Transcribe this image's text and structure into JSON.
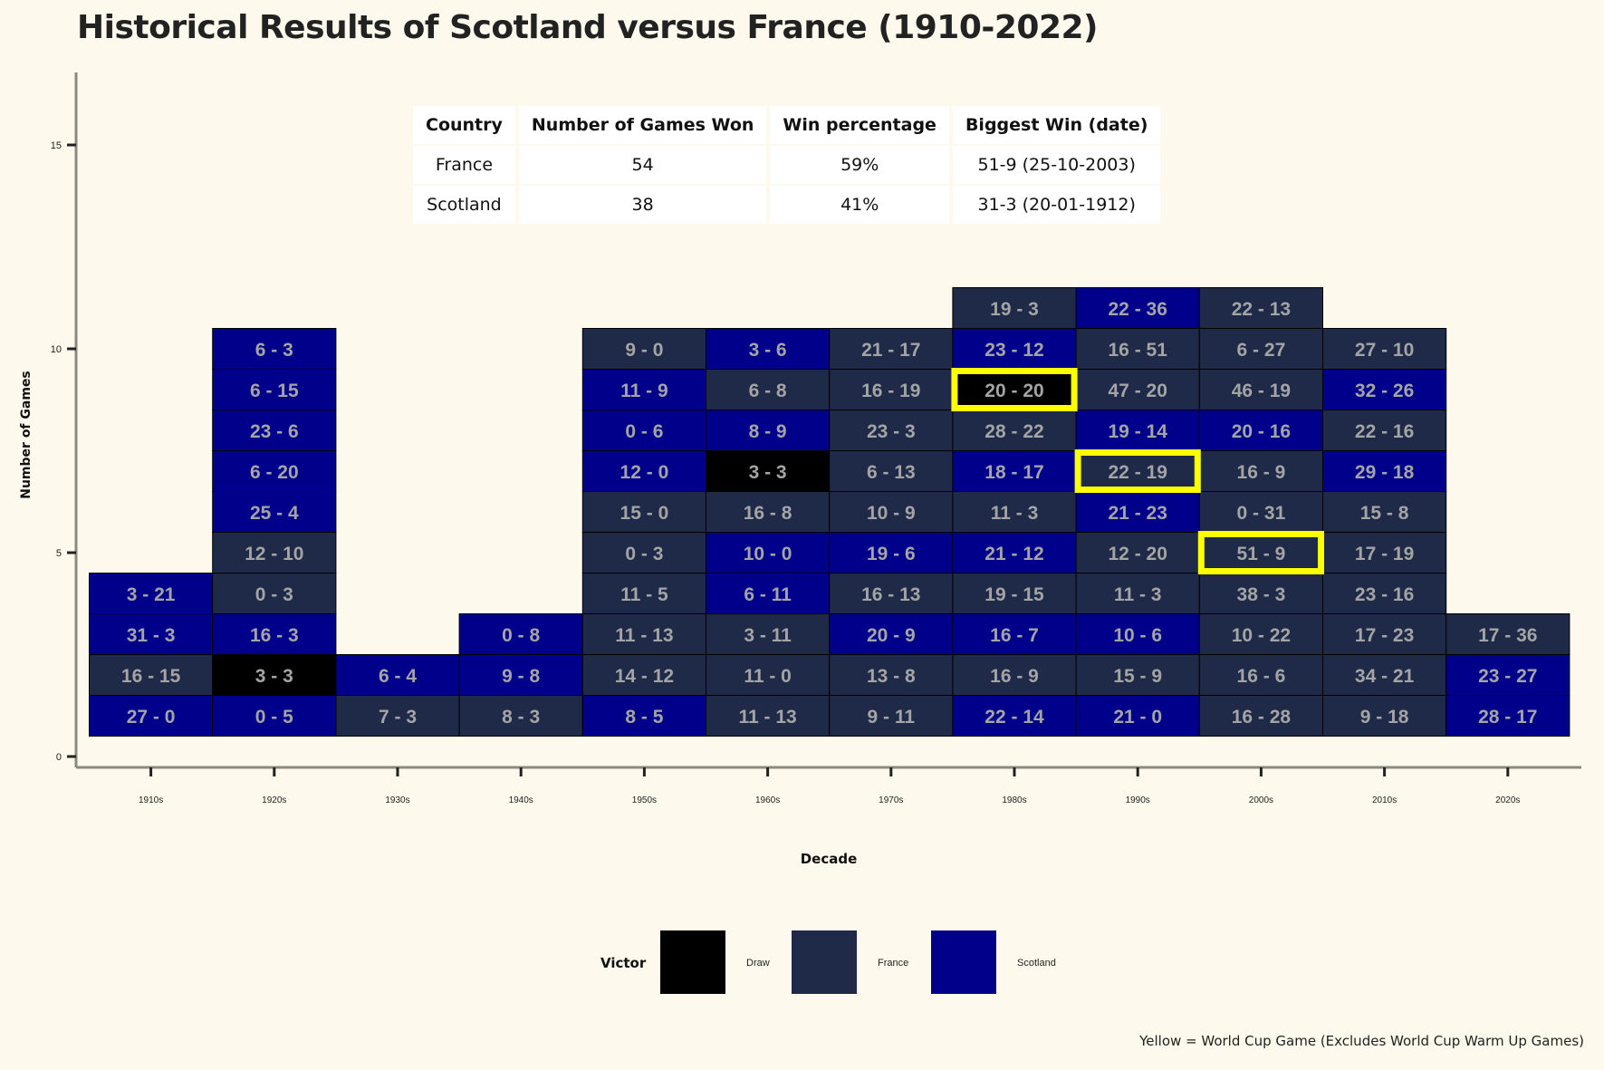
{
  "chart_data": {
    "type": "heatmap",
    "title": "Historical Results of Scotland versus France (1910-2022)",
    "xlabel": "Decade",
    "ylabel": "Number of Games",
    "ylim": [
      0,
      16
    ],
    "yticks": [
      0,
      5,
      10,
      15
    ],
    "categories": [
      "1910s",
      "1920s",
      "1930s",
      "1940s",
      "1950s",
      "1960s",
      "1970s",
      "1980s",
      "1990s",
      "2000s",
      "2010s",
      "2020s"
    ],
    "legend": {
      "title": "Victor",
      "entries": [
        "Draw",
        "France",
        "Scotland"
      ],
      "placement": "bottom"
    },
    "colors": {
      "Draw": "#000000",
      "France": "#1e2a47",
      "Scotland": "#00008b",
      "world_cup_outline": "#ffff00",
      "cell_text": "#a4a4a4"
    },
    "columns": [
      {
        "decade": "1910s",
        "games": [
          {
            "score": "27 - 0",
            "victor": "Scotland"
          },
          {
            "score": "16 - 15",
            "victor": "France"
          },
          {
            "score": "31 - 3",
            "victor": "Scotland"
          },
          {
            "score": "3 - 21",
            "victor": "Scotland"
          }
        ]
      },
      {
        "decade": "1920s",
        "games": [
          {
            "score": "0 - 5",
            "victor": "Scotland"
          },
          {
            "score": "3 - 3",
            "victor": "Draw"
          },
          {
            "score": "16 - 3",
            "victor": "Scotland"
          },
          {
            "score": "0 - 3",
            "victor": "France"
          },
          {
            "score": "12 - 10",
            "victor": "France"
          },
          {
            "score": "25 - 4",
            "victor": "Scotland"
          },
          {
            "score": "6 - 20",
            "victor": "Scotland"
          },
          {
            "score": "23 - 6",
            "victor": "Scotland"
          },
          {
            "score": "6 - 15",
            "victor": "Scotland"
          },
          {
            "score": "6 - 3",
            "victor": "Scotland"
          }
        ]
      },
      {
        "decade": "1930s",
        "games": [
          {
            "score": "7 - 3",
            "victor": "France"
          },
          {
            "score": "6 - 4",
            "victor": "Scotland"
          }
        ]
      },
      {
        "decade": "1940s",
        "games": [
          {
            "score": "8 - 3",
            "victor": "France"
          },
          {
            "score": "9 - 8",
            "victor": "Scotland"
          },
          {
            "score": "0 - 8",
            "victor": "Scotland"
          }
        ]
      },
      {
        "decade": "1950s",
        "games": [
          {
            "score": "8 - 5",
            "victor": "Scotland"
          },
          {
            "score": "14 - 12",
            "victor": "France"
          },
          {
            "score": "11 - 13",
            "victor": "France"
          },
          {
            "score": "11 - 5",
            "victor": "France"
          },
          {
            "score": "0 - 3",
            "victor": "France"
          },
          {
            "score": "15 - 0",
            "victor": "France"
          },
          {
            "score": "12 - 0",
            "victor": "Scotland"
          },
          {
            "score": "0 - 6",
            "victor": "Scotland"
          },
          {
            "score": "11 - 9",
            "victor": "Scotland"
          },
          {
            "score": "9 - 0",
            "victor": "France"
          }
        ]
      },
      {
        "decade": "1960s",
        "games": [
          {
            "score": "11 - 13",
            "victor": "France"
          },
          {
            "score": "11 - 0",
            "victor": "France"
          },
          {
            "score": "3 - 11",
            "victor": "France"
          },
          {
            "score": "6 - 11",
            "victor": "Scotland"
          },
          {
            "score": "10 - 0",
            "victor": "Scotland"
          },
          {
            "score": "16 - 8",
            "victor": "France"
          },
          {
            "score": "3 - 3",
            "victor": "Draw"
          },
          {
            "score": "8 - 9",
            "victor": "Scotland"
          },
          {
            "score": "6 - 8",
            "victor": "France"
          },
          {
            "score": "3 - 6",
            "victor": "Scotland"
          }
        ]
      },
      {
        "decade": "1970s",
        "games": [
          {
            "score": "9 - 11",
            "victor": "France"
          },
          {
            "score": "13 - 8",
            "victor": "France"
          },
          {
            "score": "20 - 9",
            "victor": "Scotland"
          },
          {
            "score": "16 - 13",
            "victor": "France"
          },
          {
            "score": "19 - 6",
            "victor": "Scotland"
          },
          {
            "score": "10 - 9",
            "victor": "France"
          },
          {
            "score": "6 - 13",
            "victor": "France"
          },
          {
            "score": "23 - 3",
            "victor": "France"
          },
          {
            "score": "16 - 19",
            "victor": "France"
          },
          {
            "score": "21 - 17",
            "victor": "France"
          }
        ]
      },
      {
        "decade": "1980s",
        "games": [
          {
            "score": "22 - 14",
            "victor": "Scotland"
          },
          {
            "score": "16 - 9",
            "victor": "France"
          },
          {
            "score": "16 - 7",
            "victor": "Scotland"
          },
          {
            "score": "19 - 15",
            "victor": "France"
          },
          {
            "score": "21 - 12",
            "victor": "Scotland"
          },
          {
            "score": "11 - 3",
            "victor": "France"
          },
          {
            "score": "18 - 17",
            "victor": "Scotland"
          },
          {
            "score": "28 - 22",
            "victor": "France"
          },
          {
            "score": "20 - 20",
            "victor": "Draw",
            "world_cup": true
          },
          {
            "score": "23 - 12",
            "victor": "Scotland"
          },
          {
            "score": "19 - 3",
            "victor": "France"
          }
        ]
      },
      {
        "decade": "1990s",
        "games": [
          {
            "score": "21 - 0",
            "victor": "Scotland"
          },
          {
            "score": "15 - 9",
            "victor": "France"
          },
          {
            "score": "10 - 6",
            "victor": "Scotland"
          },
          {
            "score": "11 - 3",
            "victor": "France"
          },
          {
            "score": "12 - 20",
            "victor": "France"
          },
          {
            "score": "21 - 23",
            "victor": "Scotland"
          },
          {
            "score": "22 - 19",
            "victor": "France",
            "world_cup": true
          },
          {
            "score": "19 - 14",
            "victor": "Scotland"
          },
          {
            "score": "47 - 20",
            "victor": "France"
          },
          {
            "score": "16 - 51",
            "victor": "France"
          },
          {
            "score": "22 - 36",
            "victor": "Scotland"
          }
        ]
      },
      {
        "decade": "2000s",
        "games": [
          {
            "score": "16 - 28",
            "victor": "France"
          },
          {
            "score": "16 - 6",
            "victor": "France"
          },
          {
            "score": "10 - 22",
            "victor": "France"
          },
          {
            "score": "38 - 3",
            "victor": "France"
          },
          {
            "score": "51 - 9",
            "victor": "France",
            "world_cup": true
          },
          {
            "score": "0 - 31",
            "victor": "France"
          },
          {
            "score": "16 - 9",
            "victor": "France"
          },
          {
            "score": "20 - 16",
            "victor": "Scotland"
          },
          {
            "score": "46 - 19",
            "victor": "France"
          },
          {
            "score": "6 - 27",
            "victor": "France"
          },
          {
            "score": "22 - 13",
            "victor": "France"
          }
        ]
      },
      {
        "decade": "2010s",
        "games": [
          {
            "score": "9 - 18",
            "victor": "France"
          },
          {
            "score": "34 - 21",
            "victor": "France"
          },
          {
            "score": "17 - 23",
            "victor": "France"
          },
          {
            "score": "23 - 16",
            "victor": "France"
          },
          {
            "score": "17 - 19",
            "victor": "France"
          },
          {
            "score": "15 - 8",
            "victor": "France"
          },
          {
            "score": "29 - 18",
            "victor": "Scotland"
          },
          {
            "score": "22 - 16",
            "victor": "France"
          },
          {
            "score": "32 - 26",
            "victor": "Scotland"
          },
          {
            "score": "27 - 10",
            "victor": "France"
          }
        ]
      },
      {
        "decade": "2020s",
        "games": [
          {
            "score": "28 - 17",
            "victor": "Scotland"
          },
          {
            "score": "23 - 27",
            "victor": "Scotland"
          },
          {
            "score": "17 - 36",
            "victor": "France"
          }
        ]
      }
    ]
  },
  "summary_table": {
    "headers": [
      "Country",
      "Number of Games Won",
      "Win percentage",
      "Biggest Win (date)"
    ],
    "rows": [
      [
        "France",
        "54",
        "59%",
        "51-9 (25-10-2003)"
      ],
      [
        "Scotland",
        "38",
        "41%",
        "31-3 (20-01-1912)"
      ]
    ]
  },
  "caption": "Yellow = World Cup Game (Excludes World Cup Warm Up Games)"
}
